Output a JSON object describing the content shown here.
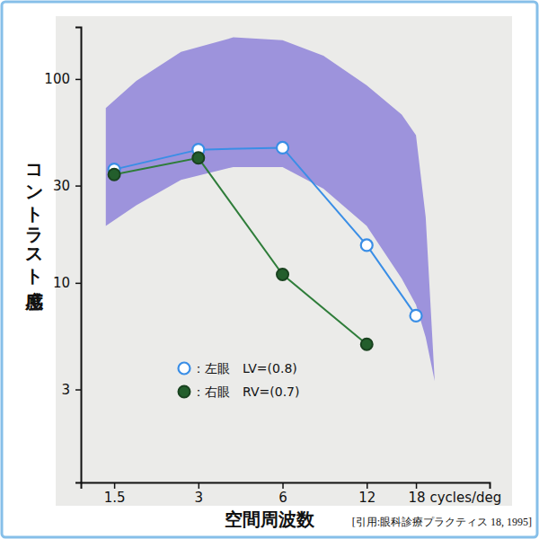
{
  "chart_data": {
    "type": "line",
    "x_label": "空間周波数",
    "y_label": "コントラスト感度",
    "source": "[引用:眼科診療プラクティス 18, 1995]",
    "log": true,
    "xlim": [
      1.14,
      33
    ],
    "ylim": [
      1.05,
      180
    ],
    "xticks": [
      1.5,
      3,
      6,
      12,
      {
        "value": 18,
        "label": "18 cycles/deg"
      }
    ],
    "yticks": [
      3,
      10,
      30,
      100
    ],
    "x": [
      1.5,
      3,
      6,
      12,
      18
    ],
    "series": [
      {
        "name": "：左眼　LV=(0.8)",
        "color": "#3a8ee6",
        "marker": "open-circle",
        "values": [
          36,
          45,
          46,
          15.3,
          6.9
        ]
      },
      {
        "name": "：右眼　RV=(0.7)",
        "color": "#2f7d3a",
        "marker": "filled-circle",
        "values": [
          34,
          41,
          11,
          5.0,
          null
        ]
      }
    ],
    "normal_range": {
      "color": "#9d93dc",
      "x": [
        1.4,
        1.8,
        2.6,
        4,
        6,
        8.4,
        12,
        16,
        18,
        19.5,
        21
      ],
      "upper": [
        72,
        98,
        136,
        160,
        155,
        130,
        93,
        67,
        53,
        21,
        3.3
      ],
      "lower": [
        19,
        24,
        32,
        37,
        37,
        29,
        19,
        10.5,
        7.8,
        5.4,
        3.3
      ]
    },
    "legend": "lower-center"
  }
}
